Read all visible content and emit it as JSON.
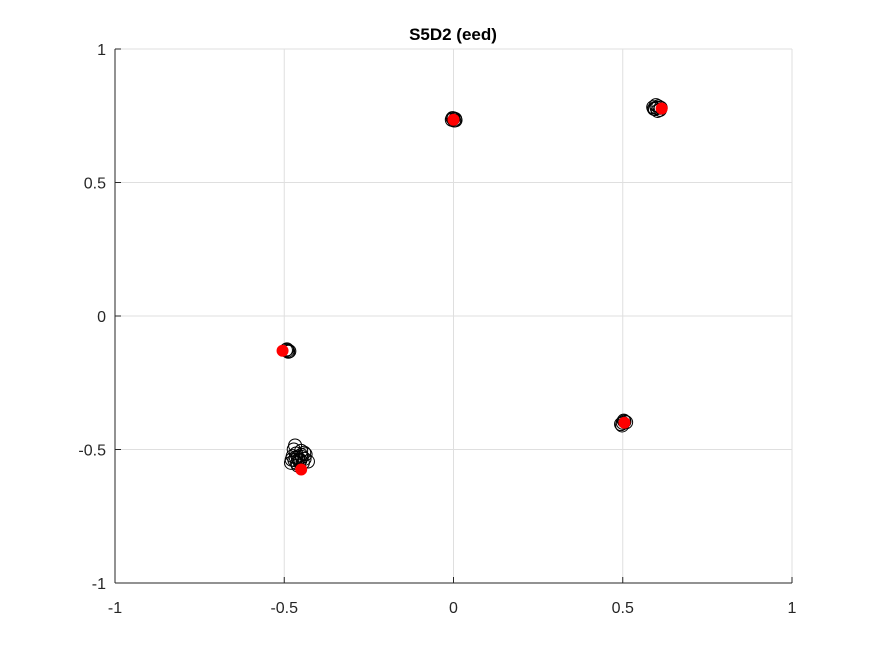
{
  "chart_data": {
    "type": "scatter",
    "title": "S5D2 (eed)",
    "xlabel": "",
    "ylabel": "",
    "xlim": [
      -1,
      1
    ],
    "ylim": [
      -1,
      1
    ],
    "grid": true,
    "xticks": [
      -1,
      -0.5,
      0,
      0.5,
      1
    ],
    "yticks": [
      -1,
      -0.5,
      0,
      0.5,
      1
    ],
    "xtick_labels": [
      "-1",
      "-0.5",
      "0",
      "0.5",
      "1"
    ],
    "ytick_labels": [
      "-1",
      "-0.5",
      "0",
      "0.5",
      "1"
    ],
    "colors": {
      "observed": "#000000",
      "reference": "#ff0000",
      "grid": "#dfdfdf",
      "axis": "#262626"
    },
    "series": [
      {
        "marker": "open-circle",
        "color": "#000000",
        "points": [
          [
            0.0,
            0.74
          ],
          [
            -0.005,
            0.735
          ],
          [
            0.005,
            0.738
          ],
          [
            0.002,
            0.732
          ],
          [
            -0.003,
            0.741
          ],
          [
            0.006,
            0.733
          ],
          [
            0.6,
            0.78
          ],
          [
            0.595,
            0.775
          ],
          [
            0.605,
            0.785
          ],
          [
            0.61,
            0.772
          ],
          [
            0.59,
            0.782
          ],
          [
            0.603,
            0.768
          ],
          [
            0.598,
            0.79
          ],
          [
            0.612,
            0.78
          ],
          [
            0.592,
            0.776
          ],
          [
            -0.49,
            -0.13
          ],
          [
            -0.495,
            -0.128
          ],
          [
            -0.485,
            -0.132
          ],
          [
            -0.492,
            -0.125
          ],
          [
            -0.488,
            -0.134
          ],
          [
            0.5,
            -0.4
          ],
          [
            0.505,
            -0.395
          ],
          [
            0.495,
            -0.405
          ],
          [
            0.51,
            -0.398
          ],
          [
            0.498,
            -0.41
          ],
          [
            0.503,
            -0.392
          ],
          [
            -0.46,
            -0.53
          ],
          [
            -0.45,
            -0.52
          ],
          [
            -0.47,
            -0.54
          ],
          [
            -0.455,
            -0.545
          ],
          [
            -0.465,
            -0.515
          ],
          [
            -0.44,
            -0.535
          ],
          [
            -0.475,
            -0.525
          ],
          [
            -0.445,
            -0.55
          ],
          [
            -0.468,
            -0.485
          ],
          [
            -0.43,
            -0.545
          ],
          [
            -0.48,
            -0.55
          ],
          [
            -0.46,
            -0.56
          ],
          [
            -0.45,
            -0.505
          ],
          [
            -0.472,
            -0.5
          ],
          [
            -0.458,
            -0.538
          ],
          [
            -0.448,
            -0.528
          ],
          [
            -0.462,
            -0.552
          ],
          [
            -0.437,
            -0.518
          ],
          [
            -0.452,
            -0.54
          ],
          [
            -0.466,
            -0.53
          ],
          [
            -0.441,
            -0.512
          ],
          [
            -0.478,
            -0.538
          ]
        ]
      },
      {
        "marker": "filled-circle",
        "color": "#ff0000",
        "points": [
          [
            0.0,
            0.735
          ],
          [
            0.615,
            0.777
          ],
          [
            -0.505,
            -0.13
          ],
          [
            0.505,
            -0.4
          ],
          [
            -0.45,
            -0.575
          ]
        ]
      }
    ]
  }
}
